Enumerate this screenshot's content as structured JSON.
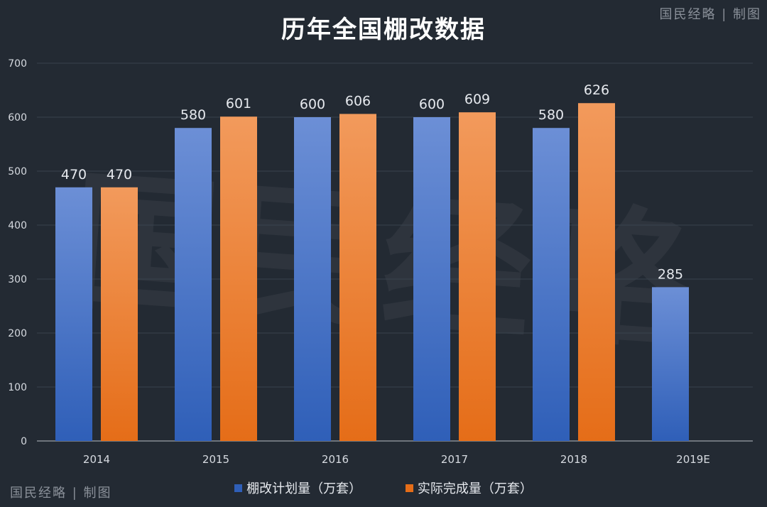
{
  "header": {
    "title": "历年全国棚改数据",
    "brand": "国民经略 | 制图",
    "watermark": "国民经略"
  },
  "colors": {
    "background": "#232a33",
    "planned_top": "#6c8fd6",
    "planned_bottom": "#2f5fb8",
    "actual_top": "#f29a5c",
    "actual_bottom": "#e56d18",
    "grid": "#3a434e"
  },
  "chart_data": {
    "type": "bar",
    "title": "历年全国棚改数据",
    "categories": [
      "2014",
      "2015",
      "2016",
      "2017",
      "2018",
      "2019E"
    ],
    "series": [
      {
        "name": "棚改计划量（万套）",
        "values": [
          470,
          580,
          600,
          600,
          580,
          285
        ]
      },
      {
        "name": "实际完成量（万套）",
        "values": [
          470,
          601,
          606,
          609,
          626,
          null
        ]
      }
    ],
    "yticks": [
      0,
      100,
      200,
      300,
      400,
      500,
      600,
      700
    ],
    "ylim": [
      0,
      700
    ],
    "xlabel": "",
    "ylabel": "",
    "grid": true,
    "legend_position": "bottom"
  }
}
